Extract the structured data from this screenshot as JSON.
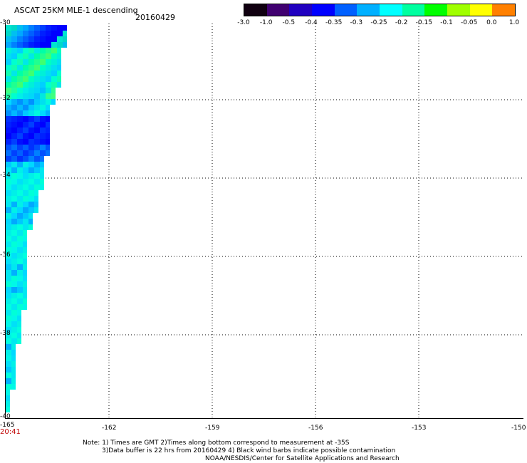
{
  "header": {
    "title": "ASCAT 25KM MLE-1 descending",
    "date": "20160429"
  },
  "legend": {
    "labels": [
      "-3.0",
      "-1.0",
      "-0.5",
      "-0.4",
      "-0.35",
      "-0.3",
      "-0.25",
      "-0.2",
      "-0.15",
      "-0.1",
      "-0.05",
      "0.0",
      "1.0"
    ],
    "colors": [
      "#100010",
      "#400070",
      "#2000c0",
      "#0000ff",
      "#0060ff",
      "#00b0ff",
      "#00ffff",
      "#00ffa0",
      "#00ff00",
      "#a0ff00",
      "#ffff00",
      "#ff8000",
      "#ff0000"
    ]
  },
  "axes": {
    "y_labels": [
      "-30",
      "-32",
      "-34",
      "-36",
      "-38",
      "-40"
    ],
    "x_labels": [
      "-165",
      "-162",
      "-159",
      "-156",
      "-153",
      "-150"
    ]
  },
  "time_label": "20:41",
  "notes": [
    "Note: 1) Times are GMT 2)Times along bottom correspond to measurement at -35S",
    "3)Data buffer is 22 hrs from 20160429 4) Black wind barbs indicate possible contamination",
    "NOAA/NESDIS/Center for Satellite Applications and Research"
  ]
}
